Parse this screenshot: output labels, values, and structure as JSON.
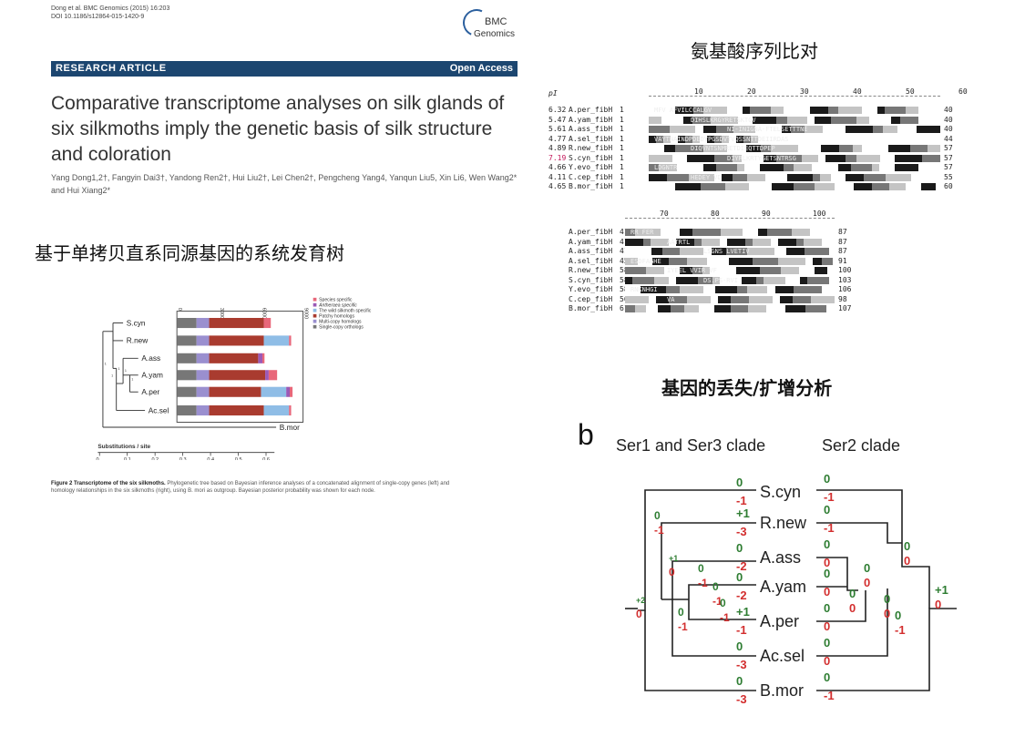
{
  "paper": {
    "citation_line1": "Dong et al. BMC Genomics (2015) 16:203",
    "citation_line2": "DOI 10.1186/s12864-015-1420-9",
    "logo_line1": "BMC",
    "logo_line2": "Genomics",
    "article_type": "RESEARCH ARTICLE",
    "access": "Open Access",
    "title": "Comparative transcriptome analyses on silk glands of six silkmoths imply the genetic basis of silk structure and coloration",
    "authors": "Yang Dong1,2†, Fangyin Dai3†, Yandong Ren2†, Hui Liu2†, Lei Chen2†, Pengcheng Yang4, Yanqun Liu5, Xin Li6, Wen Wang2* and Hui Xiang2*"
  },
  "headings": {
    "alignment": "氨基酸序列比对",
    "tree": "基于单拷贝直系同源基因的系统发育树",
    "gene_loss": "基因的丢失/扩增分析"
  },
  "figure2": {
    "caption_bold": "Figure 2 Transcriptome of the six silkmoths.",
    "caption_rest": "Phylogenetic tree based on Bayesian inference analyses of a concatenated alignment of single-copy genes (left) and homology relationships in the six silkmoths (right), using B. mori as outgroup. Bayesian posterior probability was shown for each node.",
    "taxa": [
      "S.cyn",
      "R.new",
      "A.ass",
      "A.yam",
      "A.per",
      "Ac.sel",
      "B.mor"
    ],
    "scale_label": "Substitutions / site",
    "scale_ticks": [
      "0",
      "0.1",
      "0.2",
      "0.3",
      "0.4",
      "0.5",
      "0.6"
    ],
    "bar_axis_ticks": [
      "0",
      "3000",
      "6000",
      "9000"
    ],
    "legend": [
      {
        "label": "Species specific",
        "color": "#e8677a"
      },
      {
        "label": "Antheraea specific",
        "color": "#9b59b6"
      },
      {
        "label": "The wild silkmoth specific",
        "color": "#8fbde6"
      },
      {
        "label": "Patchy homologs",
        "color": "#a93b2f"
      },
      {
        "label": "Multi-copy homologs",
        "color": "#9a8fcf"
      },
      {
        "label": "Single-copy orthologs",
        "color": "#777777"
      }
    ],
    "node_support": [
      "1",
      "1",
      "1",
      "1",
      "1"
    ],
    "bars": [
      {
        "taxon": "S.cyn",
        "values": [
          1400,
          900,
          3900,
          0,
          0,
          500
        ]
      },
      {
        "taxon": "R.new",
        "values": [
          1400,
          900,
          3900,
          1800,
          0,
          150
        ]
      },
      {
        "taxon": "A.ass",
        "values": [
          1400,
          900,
          3500,
          0,
          300,
          150
        ]
      },
      {
        "taxon": "A.yam",
        "values": [
          1400,
          900,
          4000,
          0,
          250,
          600
        ]
      },
      {
        "taxon": "A.per",
        "values": [
          1400,
          900,
          3700,
          1800,
          250,
          200
        ]
      },
      {
        "taxon": "Ac.sel",
        "values": [
          1400,
          900,
          3900,
          1800,
          0,
          150
        ]
      }
    ]
  },
  "alignment": {
    "pi_header": "pI",
    "block1": {
      "ruler": [
        "10",
        "20",
        "30",
        "40",
        "50",
        "60"
      ],
      "rows": [
        {
          "pi": "6.32",
          "name": "A.per_fibH",
          "start": "1",
          "end": "40"
        },
        {
          "pi": "5.47",
          "name": "A.yam_fibH",
          "start": "1",
          "end": "40"
        },
        {
          "pi": "5.61",
          "name": "A.ass_fibH",
          "start": "1",
          "end": "40"
        },
        {
          "pi": "4.77",
          "name": "A.sel_fibH",
          "start": "1",
          "end": "44"
        },
        {
          "pi": "4.89",
          "name": "R.new_fibH",
          "start": "1",
          "end": "57"
        },
        {
          "pi": "7.19",
          "name": "S.cyn_fibH",
          "start": "1",
          "end": "57"
        },
        {
          "pi": "4.66",
          "name": "Y.evo_fibH",
          "start": "1",
          "end": "57"
        },
        {
          "pi": "4.11",
          "name": "C.cep_fibH",
          "start": "1",
          "end": "55"
        },
        {
          "pi": "4.65",
          "name": "B.mor_fibH",
          "start": "1",
          "end": "60"
        }
      ],
      "fragments": [
        "MFV AFVILCCALGV",
        "DIHSLKRGYRETSKTGV",
        "NI-INIGNA-FTELSETTTNE",
        "VAYTNAINDPDEDYPGSDVTVQSSNTTDEIIRDAS",
        "DIQVNTSNMRETDIEQTTDPEP",
        "DIYRLKRTYGETSNTRSG",
        "LDGNTR",
        "HEDEY VD"
      ]
    },
    "block2": {
      "ruler": [
        "70",
        "80",
        "90",
        "100"
      ],
      "rows": [
        {
          "name": "A.per_fibH",
          "start": "41",
          "end": "87"
        },
        {
          "name": "A.yam_fibH",
          "start": "41",
          "end": "87"
        },
        {
          "name": "A.ass_fibH",
          "start": "41",
          "end": "87"
        },
        {
          "name": "A.sel_fibH",
          "start": "45",
          "end": "91"
        },
        {
          "name": "R.new_fibH",
          "start": "58",
          "end": "100"
        },
        {
          "name": "S.cyn_fibH",
          "start": "58",
          "end": "103"
        },
        {
          "name": "Y.evo_fibH",
          "start": "58",
          "end": "106"
        },
        {
          "name": "C.cep_fibH",
          "start": "56",
          "end": "98"
        },
        {
          "name": "B.mor_fibH",
          "start": "61",
          "end": "107"
        }
      ],
      "fragments": [
        "RR FER",
        "AATRTL",
        "LSGNS LVETIV",
        "ESDFAGHE",
        "IYEEL VVIR VF",
        "DS.PS-RVI",
        "RNKNHGI",
        "VA"
      ]
    }
  },
  "panel_b": {
    "label": "b",
    "left_clade": "Ser1 and Ser3 clade",
    "right_clade": "Ser2 clade",
    "taxa": [
      "S.cyn",
      "R.new",
      "A.ass",
      "A.yam",
      "A.per",
      "Ac.sel",
      "B.mor"
    ],
    "taxa_left_changes": [
      [
        "0",
        "-1"
      ],
      [
        "+1",
        "-3"
      ],
      [
        "0",
        "-2"
      ],
      [
        "0",
        "-2"
      ],
      [
        "+1",
        "-1"
      ],
      [
        "0",
        "-3"
      ],
      [
        "0",
        "-3"
      ]
    ],
    "taxa_right_changes": [
      [
        "0",
        "-1"
      ],
      [
        "0",
        "-1"
      ],
      [
        "0",
        "0"
      ],
      [
        "0",
        "0"
      ],
      [
        "0",
        "0"
      ],
      [
        "0",
        "0"
      ],
      [
        "0",
        "-1"
      ]
    ],
    "left_internal": [
      {
        "gain": "+2",
        "loss": "0"
      },
      {
        "gain": "0",
        "loss": "-1"
      },
      {
        "gain": "+1",
        "loss": "0"
      },
      {
        "gain": "0",
        "loss": "-1"
      },
      {
        "gain": "0",
        "loss": "-1"
      },
      {
        "gain": "0",
        "loss": "-1"
      },
      {
        "gain": "0",
        "loss": "-1"
      }
    ],
    "right_internal": [
      {
        "gain": "+1",
        "loss": "0"
      },
      {
        "gain": "0",
        "loss": "0"
      },
      {
        "gain": "0",
        "loss": "-1"
      },
      {
        "gain": "0",
        "loss": "0"
      },
      {
        "gain": "0",
        "loss": "0"
      },
      {
        "gain": "0",
        "loss": "0"
      }
    ],
    "gain_color": "#2e7d32",
    "loss_color": "#d32f2f"
  }
}
